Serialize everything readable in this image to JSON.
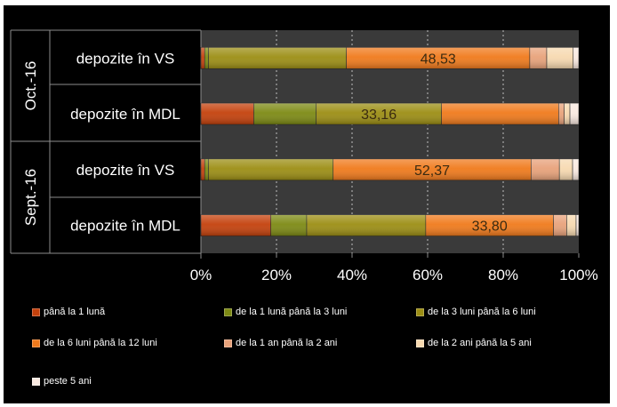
{
  "chart_data": {
    "type": "bar",
    "orientation": "horizontal",
    "stacked": "percent",
    "groups": [
      {
        "label": "Oct.-16",
        "categories": [
          "depozite în VS",
          "depozite în MDL"
        ]
      },
      {
        "label": "Sept.-16",
        "categories": [
          "depozite în VS",
          "depozite în MDL"
        ]
      }
    ],
    "categories": [
      "depozite în VS",
      "depozite în MDL",
      "depozite în VS",
      "depozite în MDL"
    ],
    "series": [
      {
        "name": "până la 1 lună",
        "color": "#c4410c",
        "values": [
          1.0,
          14.0,
          1.0,
          18.5
        ]
      },
      {
        "name": "de la 1 lună până la 3 luni",
        "color": "#7d8a14",
        "values": [
          1.0,
          16.5,
          1.0,
          9.5
        ]
      },
      {
        "name": "de la 3 luni până la 6 luni",
        "color": "#9c8e14",
        "values": [
          36.5,
          33.16,
          33.0,
          31.5
        ]
      },
      {
        "name": "de la 6 luni până la 12 luni",
        "color": "#f07a1c",
        "values": [
          48.53,
          31.0,
          52.37,
          33.8
        ]
      },
      {
        "name": "de la 1 an până la 2 ani",
        "color": "#e8a27a",
        "values": [
          4.5,
          1.5,
          7.5,
          3.5
        ]
      },
      {
        "name": "de la 2 ani până la 5 ani",
        "color": "#f7d9b0",
        "values": [
          7.0,
          1.5,
          3.5,
          2.5
        ]
      },
      {
        "name": "peste 5 ani",
        "color": "#f9e9e0",
        "values": [
          1.47,
          2.34,
          1.63,
          0.7
        ]
      }
    ],
    "data_labels": [
      {
        "bar_index": 0,
        "series_index": 3,
        "text": "48,53"
      },
      {
        "bar_index": 1,
        "series_index": 2,
        "text": "33,16"
      },
      {
        "bar_index": 2,
        "series_index": 3,
        "text": "52,37"
      },
      {
        "bar_index": 3,
        "series_index": 3,
        "text": "33,80"
      }
    ],
    "x_ticks": [
      "0%",
      "20%",
      "40%",
      "60%",
      "80%",
      "100%"
    ],
    "xlim": [
      0,
      100
    ],
    "grid": true,
    "legend_position": "bottom"
  }
}
